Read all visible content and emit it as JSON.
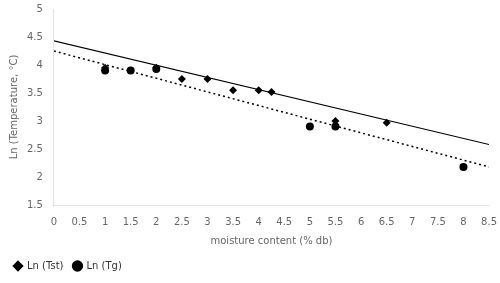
{
  "chart_data": {
    "type": "scatter",
    "xlabel": "moisture content (% db)",
    "ylabel": "Ln (Temperature, °C)",
    "xlim": [
      0,
      8.5
    ],
    "ylim": [
      1.5,
      5.0
    ],
    "xticks": [
      0,
      0.5,
      1,
      1.5,
      2,
      2.5,
      3,
      3.5,
      4,
      4.5,
      5,
      5.5,
      6,
      6.5,
      7,
      7.5,
      8,
      8.5
    ],
    "yticks": [
      1.5,
      2,
      2.5,
      3,
      3.5,
      4,
      4.5,
      5
    ],
    "grid": false,
    "legend": "lower left",
    "series": [
      {
        "type": "line",
        "line_style": "solid",
        "color": "#000000",
        "x": [
          0,
          8.5
        ],
        "values": [
          4.43,
          2.58
        ]
      },
      {
        "type": "line",
        "line_style": "dotted",
        "color": "#000000",
        "x": [
          0,
          8.5
        ],
        "values": [
          4.25,
          2.18
        ]
      },
      {
        "name": "Ln (Tst)",
        "type": "scatter",
        "marker": "diamond",
        "color": "#000000",
        "x": [
          1.0,
          2.0,
          2.5,
          3.0,
          3.5,
          4.0,
          4.25,
          5.5,
          6.5
        ],
        "values": [
          3.95,
          3.95,
          3.75,
          3.75,
          3.55,
          3.55,
          3.52,
          3.0,
          2.97
        ]
      },
      {
        "name": "Ln (Tg)",
        "type": "scatter",
        "marker": "circle",
        "color": "#000000",
        "x": [
          1.0,
          1.5,
          2.0,
          5.0,
          5.5,
          8.0
        ],
        "values": [
          3.9,
          3.9,
          3.93,
          2.9,
          2.9,
          2.18
        ]
      }
    ]
  }
}
